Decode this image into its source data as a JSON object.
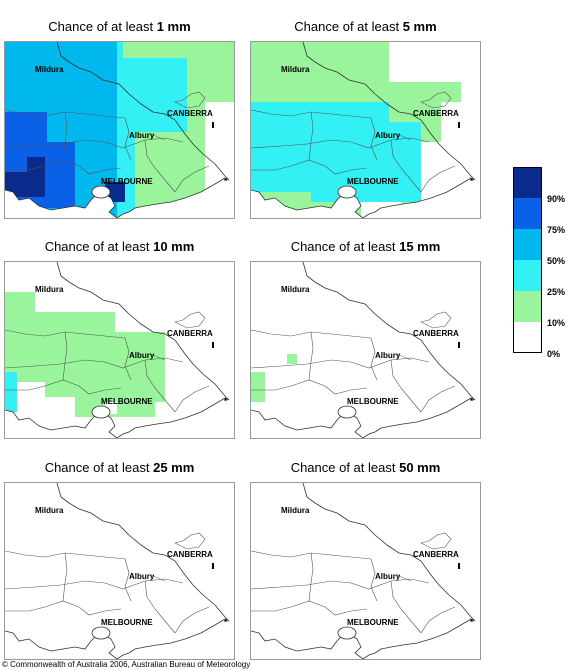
{
  "title_prefix": "Chance of at least",
  "panels": [
    {
      "amount": "1 mm"
    },
    {
      "amount": "5 mm"
    },
    {
      "amount": "10 mm"
    },
    {
      "amount": "15 mm"
    },
    {
      "amount": "25 mm"
    },
    {
      "amount": "50 mm"
    }
  ],
  "places": {
    "mildura": "Mildura",
    "canberra": "CANBERRA",
    "albury": "Albury",
    "melbourne": "MELBOURNE"
  },
  "legend": {
    "labels": [
      "90%",
      "75%",
      "50%",
      "25%",
      "10%",
      "0%"
    ],
    "colors": [
      "#0a2a8c",
      "#0a60e6",
      "#00b8ee",
      "#33f0f4",
      "#99f49b",
      "#ffffff"
    ]
  },
  "copyright": "© Commonwealth of Australia 2006, Australian Bureau of Meteorology"
}
